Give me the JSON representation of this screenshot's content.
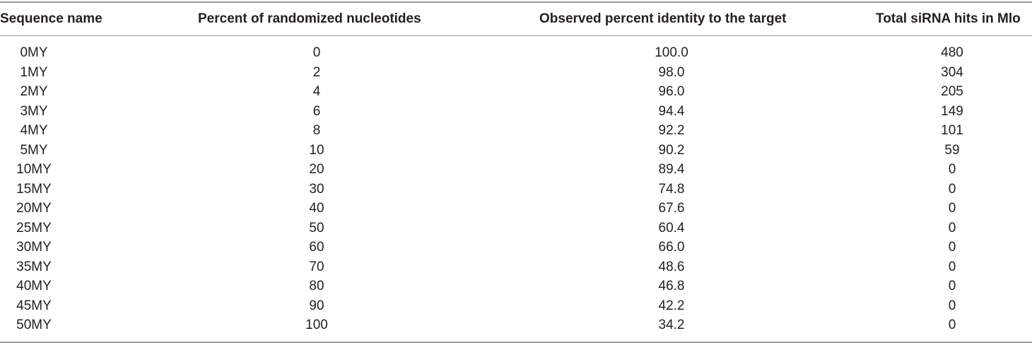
{
  "table": {
    "headers": [
      "Sequence name",
      "Percent of randomized nucleotides",
      "Observed percent identity to the target",
      "Total siRNA hits in Mlo"
    ],
    "rows": [
      [
        "0MY",
        "0",
        "100.0",
        "480"
      ],
      [
        "1MY",
        "2",
        "98.0",
        "304"
      ],
      [
        "2MY",
        "4",
        "96.0",
        "205"
      ],
      [
        "3MY",
        "6",
        "94.4",
        "149"
      ],
      [
        "4MY",
        "8",
        "92.2",
        "101"
      ],
      [
        "5MY",
        "10",
        "90.2",
        "59"
      ],
      [
        "10MY",
        "20",
        "89.4",
        "0"
      ],
      [
        "15MY",
        "30",
        "74.8",
        "0"
      ],
      [
        "20MY",
        "40",
        "67.6",
        "0"
      ],
      [
        "25MY",
        "50",
        "60.4",
        "0"
      ],
      [
        "30MY",
        "60",
        "66.0",
        "0"
      ],
      [
        "35MY",
        "70",
        "48.6",
        "0"
      ],
      [
        "40MY",
        "80",
        "46.8",
        "0"
      ],
      [
        "45MY",
        "90",
        "42.2",
        "0"
      ],
      [
        "50MY",
        "100",
        "34.2",
        "0"
      ]
    ]
  }
}
